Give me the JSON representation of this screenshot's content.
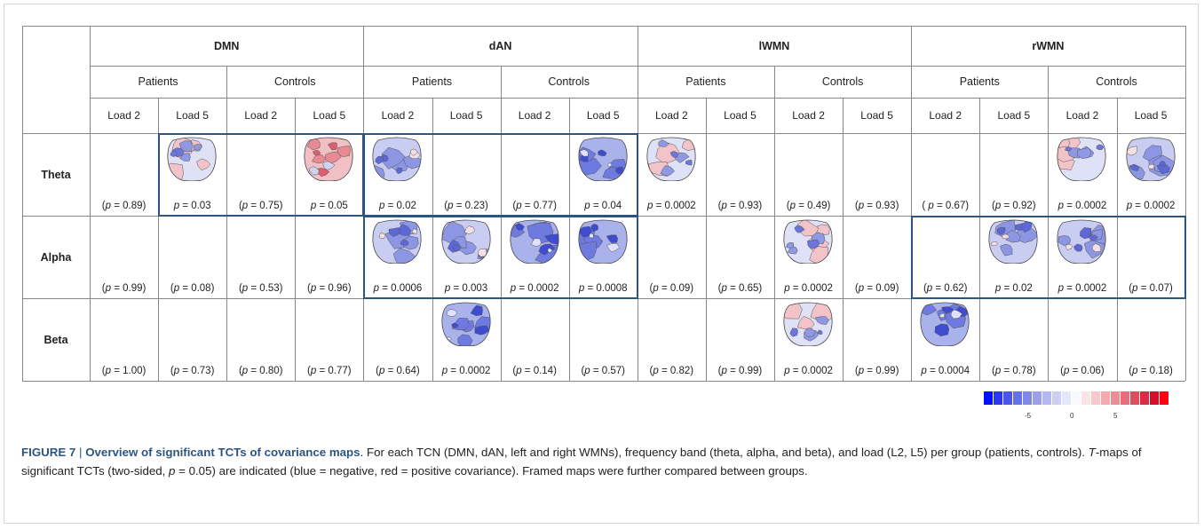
{
  "networks": [
    "DMN",
    "dAN",
    "lWMN",
    "rWMN"
  ],
  "groups": [
    "Patients",
    "Controls"
  ],
  "loads": [
    "Load 2",
    "Load 5"
  ],
  "bands": [
    "Theta",
    "Alpha",
    "Beta"
  ],
  "cells": [
    [
      {
        "p": "(p = 0.89)",
        "map": false
      },
      {
        "p": "p = 0.03",
        "map": true,
        "tone": "mixed"
      },
      {
        "p": "(p = 0.75)",
        "map": false
      },
      {
        "p": "p = 0.05",
        "map": true,
        "tone": "red"
      },
      {
        "p": "p = 0.02",
        "map": true,
        "tone": "blue"
      },
      {
        "p": "(p = 0.23)",
        "map": false
      },
      {
        "p": "(p = 0.77)",
        "map": false
      },
      {
        "p": "p = 0.04",
        "map": true,
        "tone": "darkblue"
      },
      {
        "p": "p = 0.0002",
        "map": true,
        "tone": "mixed"
      },
      {
        "p": "(p = 0.93)",
        "map": false
      },
      {
        "p": "(p = 0.49)",
        "map": false
      },
      {
        "p": "(p = 0.93)",
        "map": false
      },
      {
        "p": "( p = 0.67)",
        "map": false
      },
      {
        "p": "(p = 0.92)",
        "map": false
      },
      {
        "p": "p = 0.0002",
        "map": true,
        "tone": "mixed"
      },
      {
        "p": "p = 0.0002",
        "map": true,
        "tone": "blue"
      }
    ],
    [
      {
        "p": "(p = 0.99)",
        "map": false
      },
      {
        "p": "(p = 0.08)",
        "map": false
      },
      {
        "p": "(p = 0.53)",
        "map": false
      },
      {
        "p": "(p = 0.96)",
        "map": false
      },
      {
        "p": "p = 0.0006",
        "map": true,
        "tone": "blue"
      },
      {
        "p": "p = 0.003",
        "map": true,
        "tone": "blue"
      },
      {
        "p": "p = 0.0002",
        "map": true,
        "tone": "darkblue"
      },
      {
        "p": "p = 0.0008",
        "map": true,
        "tone": "darkblue"
      },
      {
        "p": "(p = 0.09)",
        "map": false
      },
      {
        "p": "(p = 0.65)",
        "map": false
      },
      {
        "p": "p = 0.0002",
        "map": true,
        "tone": "mixed"
      },
      {
        "p": "(p = 0.09)",
        "map": false
      },
      {
        "p": "(p = 0.62)",
        "map": false
      },
      {
        "p": "p = 0.02",
        "map": true,
        "tone": "blue"
      },
      {
        "p": "p = 0.0002",
        "map": true,
        "tone": "blue"
      },
      {
        "p": "(p = 0.07)",
        "map": false
      }
    ],
    [
      {
        "p": "(p = 1.00)",
        "map": false
      },
      {
        "p": "(p = 0.73)",
        "map": false
      },
      {
        "p": "(p = 0.80)",
        "map": false
      },
      {
        "p": "(p = 0.77)",
        "map": false
      },
      {
        "p": "(p = 0.64)",
        "map": false
      },
      {
        "p": "p = 0.0002",
        "map": true,
        "tone": "darkblue"
      },
      {
        "p": "(p = 0.14)",
        "map": false
      },
      {
        "p": "(p = 0.57)",
        "map": false
      },
      {
        "p": "(p = 0.82)",
        "map": false
      },
      {
        "p": "(p = 0.99)",
        "map": false
      },
      {
        "p": "p = 0.0002",
        "map": true,
        "tone": "mixed"
      },
      {
        "p": "(p = 0.99)",
        "map": false
      },
      {
        "p": "p = 0.0004",
        "map": true,
        "tone": "darkblue"
      },
      {
        "p": "(p = 0.78)",
        "map": false
      },
      {
        "p": "(p = 0.06)",
        "map": false
      },
      {
        "p": "(p = 0.18)",
        "map": false
      }
    ]
  ],
  "frames": [
    {
      "band": 0,
      "from_col": 1,
      "to_col": 3
    },
    {
      "band": 0,
      "from_col": 4,
      "to_col": 7
    },
    {
      "band": 1,
      "from_col": 4,
      "to_col": 7
    },
    {
      "band": 1,
      "from_col": 12,
      "to_col": 15
    }
  ],
  "colorbar": {
    "colors": [
      "#0010ff",
      "#2a36f0",
      "#4a55ec",
      "#6670e8",
      "#8088e6",
      "#9aa0ea",
      "#b3b8ee",
      "#cccff4",
      "#e4e6fa",
      "#f8f8ff",
      "#fbe3e6",
      "#f7c8cd",
      "#f2aab1",
      "#ec8c95",
      "#e66d79",
      "#e04e5e",
      "#db2d42",
      "#d50f27",
      "#ff0010"
    ],
    "tick_labels": [
      "-5",
      "0",
      "5"
    ]
  },
  "caption": {
    "label": "FIGURE 7",
    "title": "Overview of significant TCTs of covariance maps",
    "text_1": ". For each TCN (DMN, dAN, left and right WMNs), frequency band (theta, alpha, and beta), and load (L2, L5) per group (patients, controls). ",
    "t_symbol": "T",
    "text_2": "-maps of significant TCTs (two-sided, ",
    "p_symbol": "p",
    "text_3": " = 0.05) are indicated (blue = negative, red = positive covariance). Framed maps were further compared between groups."
  }
}
